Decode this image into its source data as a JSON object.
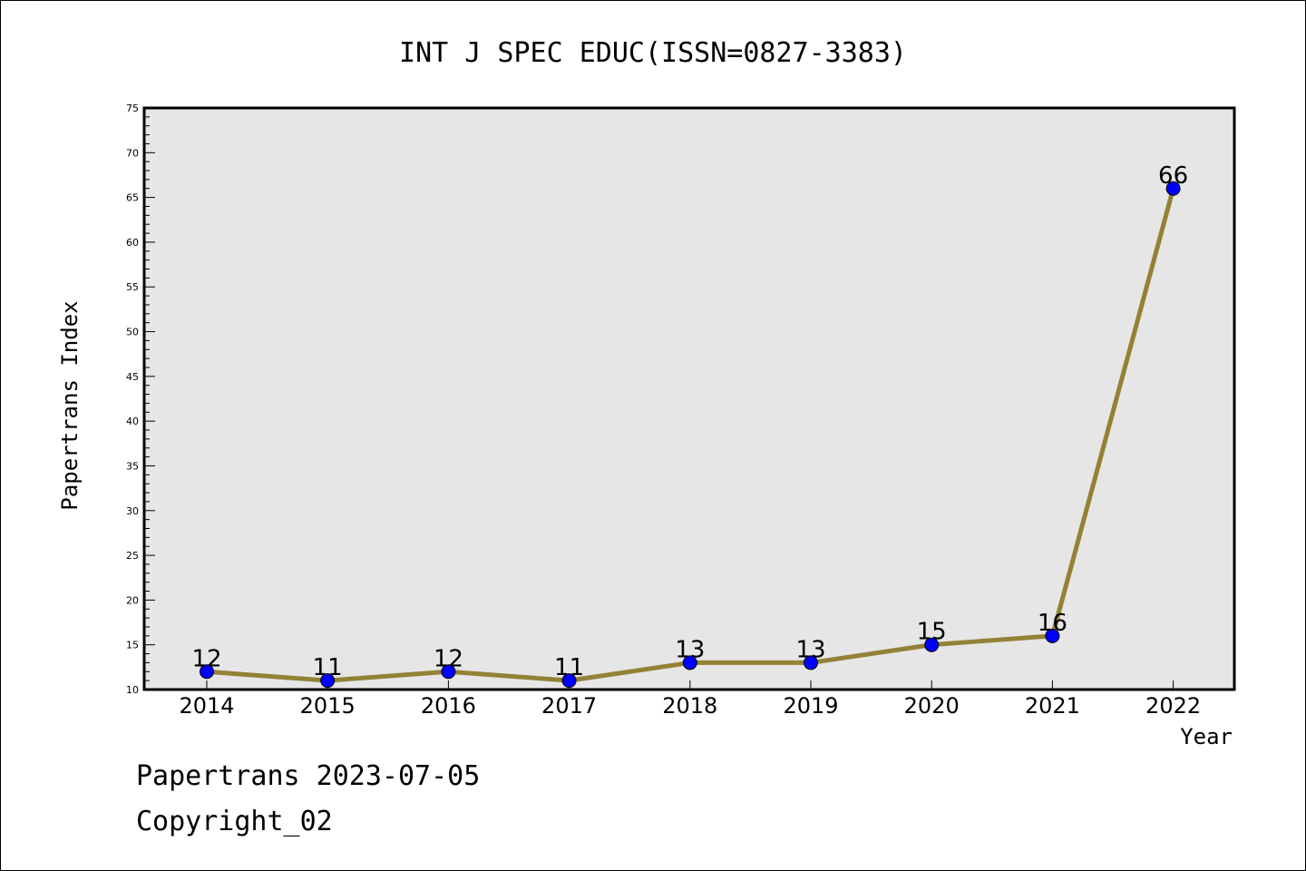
{
  "chart_data": {
    "type": "line",
    "title": "INT J SPEC EDUC(ISSN=0827-3383)",
    "xlabel": "Year",
    "ylabel": "Papertrans Index",
    "categories": [
      "2014",
      "2015",
      "2016",
      "2017",
      "2018",
      "2019",
      "2020",
      "2021",
      "2022"
    ],
    "series": [
      {
        "values": [
          12,
          11,
          12,
          11,
          13,
          13,
          15,
          16,
          66
        ]
      }
    ],
    "ylim": [
      10,
      75
    ],
    "y_major_ticks": [
      10,
      15,
      20,
      25,
      30,
      35,
      40,
      45,
      50,
      55,
      60,
      65,
      70,
      75
    ],
    "grid": false,
    "legend": "none",
    "colors": {
      "line": "#938136",
      "marker": "#0000ff",
      "plot_background": "#e6e6e6"
    }
  },
  "footer": {
    "line1": "Papertrans 2023-07-05",
    "line2": "Copyright_02"
  }
}
